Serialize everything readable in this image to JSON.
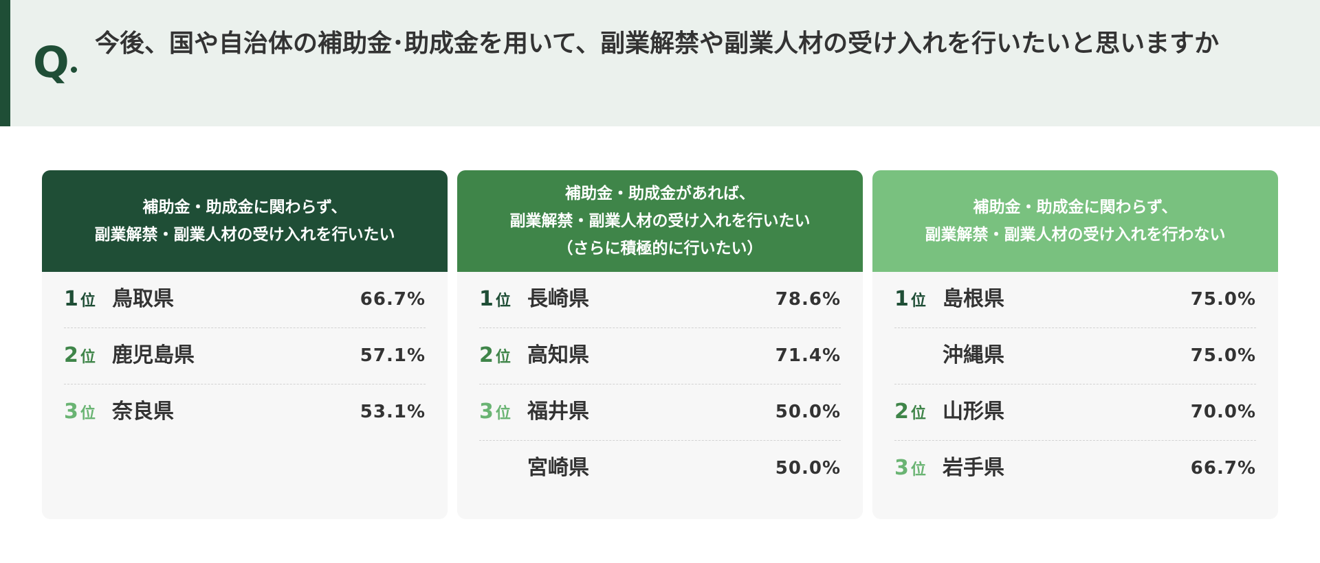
{
  "header": {
    "q_label": "Q",
    "question": "今後、国や自治体の補助金･助成金を用いて、副業解禁や副業人材の受け入れを行いたいと思いますか"
  },
  "colors": {
    "dark_green": "#1f4e36",
    "mid_green": "#3f8549",
    "light_green": "#79c17f",
    "header_bg": "#ebf1ed"
  },
  "cards": [
    {
      "title": "補助金・助成金に関わらず、\n副業解禁・副業人材の受け入れを行いたい",
      "rows": [
        {
          "rank": "1",
          "suffix": "位",
          "prefecture": "鳥取県",
          "percent": "66.7%"
        },
        {
          "rank": "2",
          "suffix": "位",
          "prefecture": "鹿児島県",
          "percent": "57.1%"
        },
        {
          "rank": "3",
          "suffix": "位",
          "prefecture": "奈良県",
          "percent": "53.1%"
        }
      ]
    },
    {
      "title": "補助金・助成金があれば、\n副業解禁・副業人材の受け入れを行いたい\n（さらに積極的に行いたい）",
      "rows": [
        {
          "rank": "1",
          "suffix": "位",
          "prefecture": "長崎県",
          "percent": "78.6%"
        },
        {
          "rank": "2",
          "suffix": "位",
          "prefecture": "高知県",
          "percent": "71.4%"
        },
        {
          "rank": "3",
          "suffix": "位",
          "prefecture": "福井県",
          "percent": "50.0%"
        },
        {
          "rank": "",
          "suffix": "",
          "prefecture": "宮崎県",
          "percent": "50.0%"
        }
      ]
    },
    {
      "title": "補助金・助成金に関わらず、\n副業解禁・副業人材の受け入れを行わない",
      "rows": [
        {
          "rank": "1",
          "suffix": "位",
          "prefecture": "島根県",
          "percent": "75.0%"
        },
        {
          "rank": "",
          "suffix": "",
          "prefecture": "沖縄県",
          "percent": "75.0%"
        },
        {
          "rank": "2",
          "suffix": "位",
          "prefecture": "山形県",
          "percent": "70.0%"
        },
        {
          "rank": "3",
          "suffix": "位",
          "prefecture": "岩手県",
          "percent": "66.7%"
        }
      ]
    }
  ]
}
